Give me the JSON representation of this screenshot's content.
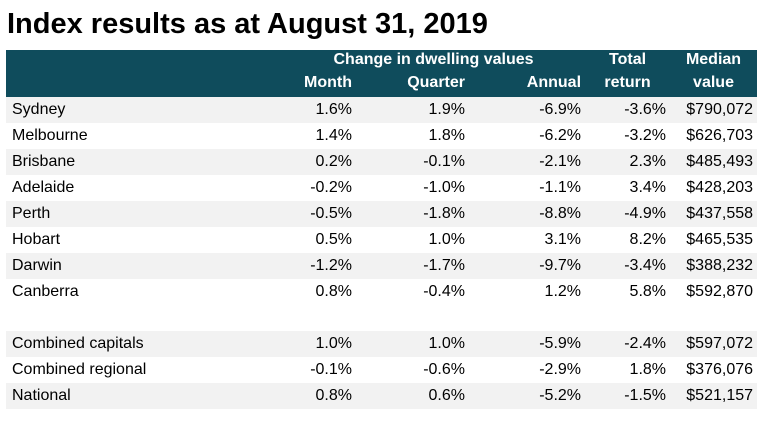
{
  "title": "Index results as at August 31, 2019",
  "header": {
    "group_label": "Change in dwelling values",
    "month": "Month",
    "quarter": "Quarter",
    "annual": "Annual",
    "total_return_line1": "Total",
    "total_return_line2": "return",
    "median_line1": "Median",
    "median_line2": "value"
  },
  "capitals": [
    {
      "name": "Sydney",
      "month": "1.6%",
      "quarter": "1.9%",
      "annual": "-6.9%",
      "total_return": "-3.6%",
      "median": "$790,072"
    },
    {
      "name": "Melbourne",
      "month": "1.4%",
      "quarter": "1.8%",
      "annual": "-6.2%",
      "total_return": "-3.2%",
      "median": "$626,703"
    },
    {
      "name": "Brisbane",
      "month": "0.2%",
      "quarter": "-0.1%",
      "annual": "-2.1%",
      "total_return": "2.3%",
      "median": "$485,493"
    },
    {
      "name": "Adelaide",
      "month": "-0.2%",
      "quarter": "-1.0%",
      "annual": "-1.1%",
      "total_return": "3.4%",
      "median": "$428,203"
    },
    {
      "name": "Perth",
      "month": "-0.5%",
      "quarter": "-1.8%",
      "annual": "-8.8%",
      "total_return": "-4.9%",
      "median": "$437,558"
    },
    {
      "name": "Hobart",
      "month": "0.5%",
      "quarter": "1.0%",
      "annual": "3.1%",
      "total_return": "8.2%",
      "median": "$465,535"
    },
    {
      "name": "Darwin",
      "month": "-1.2%",
      "quarter": "-1.7%",
      "annual": "-9.7%",
      "total_return": "-3.4%",
      "median": "$388,232"
    },
    {
      "name": "Canberra",
      "month": "0.8%",
      "quarter": "-0.4%",
      "annual": "1.2%",
      "total_return": "5.8%",
      "median": "$592,870"
    }
  ],
  "aggregates": [
    {
      "name": "Combined capitals",
      "month": "1.0%",
      "quarter": "1.0%",
      "annual": "-5.9%",
      "total_return": "-2.4%",
      "median": "$597,072"
    },
    {
      "name": "Combined regional",
      "month": "-0.1%",
      "quarter": "-0.6%",
      "annual": "-2.9%",
      "total_return": "1.8%",
      "median": "$376,076"
    },
    {
      "name": "National",
      "month": "0.8%",
      "quarter": "0.6%",
      "annual": "-5.2%",
      "total_return": "-1.5%",
      "median": "$521,157"
    }
  ]
}
